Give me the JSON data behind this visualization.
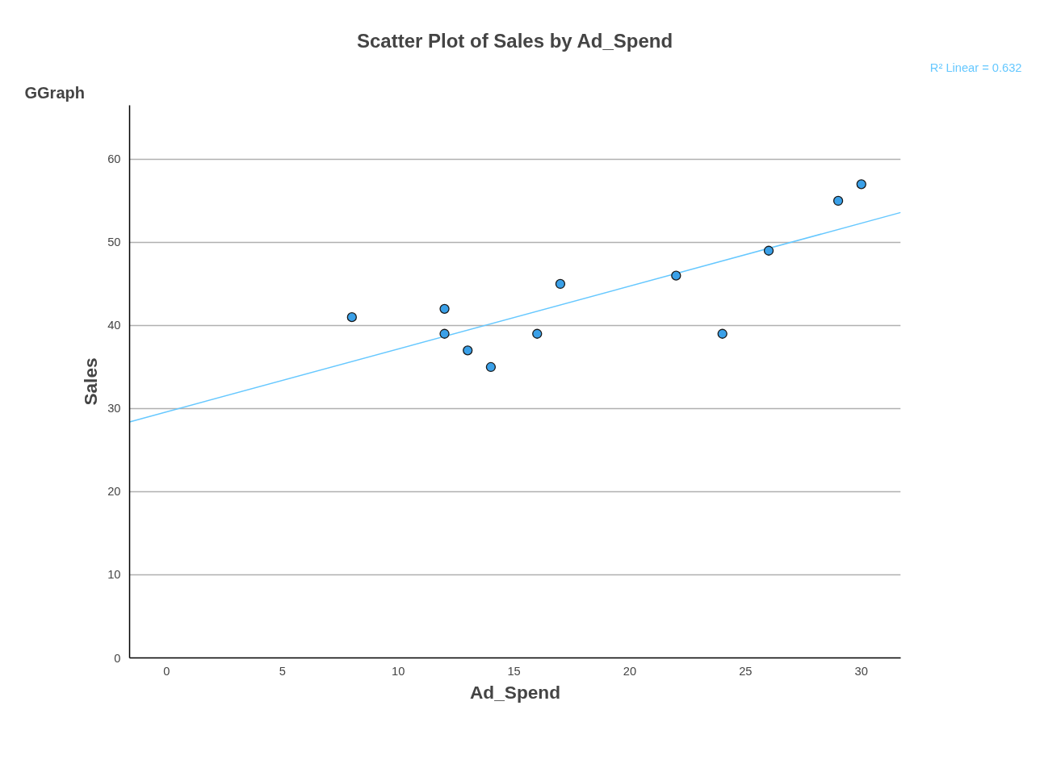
{
  "chart_data": {
    "type": "scatter",
    "title": "Scatter Plot of Sales by Ad_Spend",
    "xlabel": "Ad_Spend",
    "ylabel": "Sales",
    "annotations": [
      "GGraph",
      "R² Linear = 0.632"
    ],
    "xlim": [
      -1.6,
      31.7
    ],
    "ylim": [
      0,
      66.5
    ],
    "xticks": [
      0,
      5,
      10,
      15,
      20,
      25,
      30
    ],
    "yticks": [
      0,
      10,
      20,
      30,
      40,
      50,
      60
    ],
    "grid": "y",
    "series": [
      {
        "marker": "circle",
        "color": "#3aa0e8",
        "x": [
          8,
          12,
          12,
          13,
          14,
          16,
          17,
          22,
          24,
          26,
          29,
          30
        ],
        "values": [
          41,
          42,
          39,
          37,
          35,
          39,
          45,
          46,
          39,
          49,
          55,
          57
        ]
      },
      {
        "type": "line",
        "color": "#66c8ff",
        "x": [
          -1.6,
          31.7
        ],
        "values": [
          28.4,
          53.6
        ]
      }
    ]
  }
}
